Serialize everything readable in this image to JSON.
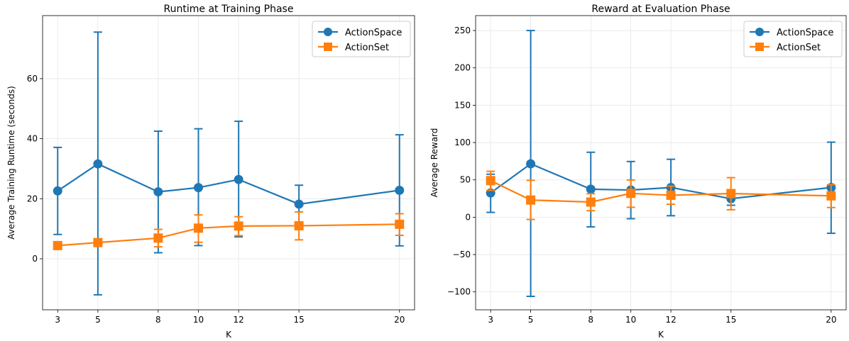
{
  "colors": {
    "actionspace": "#1f77b4",
    "actionset": "#ff7f0e",
    "grid": "#e6e6e6",
    "axis": "#000000",
    "legend_border": "#cccccc"
  },
  "chart_data": [
    {
      "type": "line",
      "title": "Runtime at Training Phase",
      "xlabel": "K",
      "ylabel": "Average Training Runtime (seconds)",
      "x": [
        3,
        5,
        8,
        10,
        12,
        15,
        20
      ],
      "xticks": [
        3,
        5,
        8,
        10,
        12,
        15,
        20
      ],
      "yticks": [
        0,
        20,
        40,
        60
      ],
      "xlim": [
        2.25,
        20.75
      ],
      "ylim": [
        -17.0,
        81.0
      ],
      "grid": true,
      "legend_position": "top-right",
      "error_bars": true,
      "series": [
        {
          "name": "ActionSpace",
          "marker": "circle",
          "color": "#1f77b4",
          "values": [
            22.6,
            31.6,
            22.3,
            23.7,
            26.4,
            18.2,
            22.8
          ],
          "err_low": [
            8.1,
            -12.0,
            2.0,
            4.4,
            7.3,
            11.9,
            4.3
          ],
          "err_high": [
            37.1,
            75.5,
            42.5,
            43.3,
            45.8,
            24.5,
            41.3
          ]
        },
        {
          "name": "ActionSet",
          "marker": "square",
          "color": "#ff7f0e",
          "values": [
            4.4,
            5.4,
            6.9,
            10.2,
            10.9,
            11.0,
            11.5
          ],
          "err_low": [
            4.4,
            5.4,
            4.0,
            5.5,
            7.7,
            6.3,
            7.8
          ],
          "err_high": [
            4.4,
            5.4,
            9.8,
            14.6,
            14.0,
            15.6,
            15.0
          ]
        }
      ]
    },
    {
      "type": "line",
      "title": "Reward at Evaluation Phase",
      "xlabel": "K",
      "ylabel": "Average Reward",
      "x": [
        3,
        5,
        8,
        10,
        12,
        15,
        20
      ],
      "xticks": [
        3,
        5,
        8,
        10,
        12,
        15,
        20
      ],
      "yticks": [
        -100,
        -50,
        0,
        50,
        100,
        150,
        200,
        250
      ],
      "xlim": [
        2.25,
        20.75
      ],
      "ylim": [
        -124.0,
        270.0
      ],
      "grid": true,
      "legend_position": "top-right",
      "error_bars": true,
      "series": [
        {
          "name": "ActionSpace",
          "marker": "circle",
          "color": "#1f77b4",
          "values": [
            32.5,
            71.5,
            37.5,
            36.4,
            39.8,
            24.8,
            39.8
          ],
          "err_low": [
            6.5,
            -106.0,
            -12.9,
            -2.0,
            2.0,
            16.0,
            -21.5
          ],
          "err_high": [
            57.6,
            250.0,
            87.0,
            74.6,
            77.6,
            33.3,
            100.5
          ]
        },
        {
          "name": "ActionSet",
          "marker": "square",
          "color": "#ff7f0e",
          "values": [
            49.0,
            23.0,
            20.3,
            31.9,
            29.4,
            31.7,
            28.6
          ],
          "err_low": [
            36.0,
            -3.0,
            8.7,
            13.3,
            17.4,
            10.0,
            13.0
          ],
          "err_high": [
            61.5,
            49.4,
            31.5,
            49.8,
            41.7,
            53.0,
            43.5
          ]
        }
      ]
    }
  ]
}
